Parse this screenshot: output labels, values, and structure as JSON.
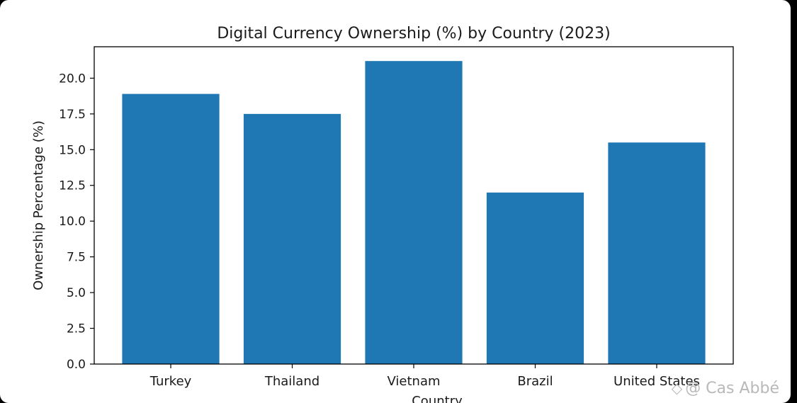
{
  "chart_data": {
    "type": "bar",
    "title": "Digital Currency Ownership (%) by Country (2023)",
    "xlabel": "Country",
    "ylabel": "Ownership Percentage (%)",
    "categories": [
      "Turkey",
      "Thailand",
      "Vietnam",
      "Brazil",
      "United States"
    ],
    "values": [
      18.9,
      17.5,
      21.2,
      12.0,
      15.5
    ],
    "ylim": [
      0,
      22.2
    ],
    "yticks": [
      "0.0",
      "2.5",
      "5.0",
      "7.5",
      "10.0",
      "12.5",
      "15.0",
      "17.5",
      "20.0"
    ],
    "grid": false,
    "bar_color": "#1f77b4"
  },
  "watermark": {
    "icon": "diamond-icon",
    "text": "@ Cas Abbé"
  }
}
